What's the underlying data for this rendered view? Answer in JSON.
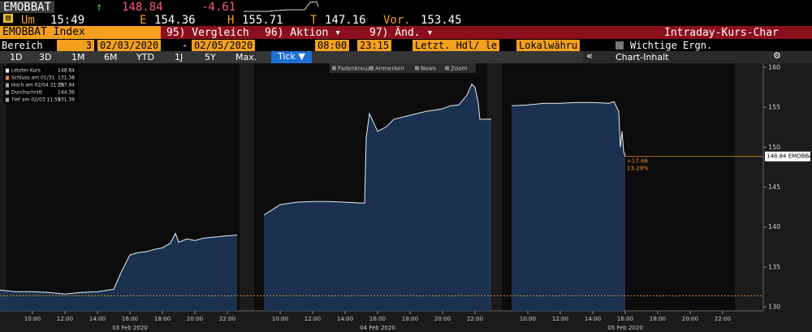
{
  "header": {
    "ticker": "EMOBBAT",
    "arrow": "↑",
    "last": 148.84,
    "change": -4.61,
    "time_label": "Um",
    "time": "15:49",
    "open_label": "E",
    "open": 154.36,
    "high_label": "H",
    "high": 155.71,
    "low_label": "T",
    "low": 147.16,
    "prev_label": "Vor.",
    "prev": 153.45
  },
  "tabs": {
    "security": "EMOBBAT Index",
    "buttons": [
      "95) Vergleich",
      "96) Aktion ▾",
      "97) Änd. ▾"
    ],
    "title": "Intraday-Kurs-Char"
  },
  "range": {
    "label": "Bereich",
    "days": "3",
    "start": "02/03/2020",
    "sep": "-",
    "end": "02/05/2020",
    "time_from": "08:00",
    "time_to": "23:15",
    "field": "Letzt. Hdl/ le",
    "currency": "Lokalwähru",
    "events": "Wichtige Ergn."
  },
  "periods": {
    "items": [
      "1D",
      "3D",
      "1M",
      "6M",
      "YTD",
      "1J",
      "5Y",
      "Max."
    ],
    "selected": "Tick ▼",
    "collapse": "«",
    "content": "Chart-Inhalt"
  },
  "chart_data": {
    "type": "line",
    "color": "#e6edf5",
    "fill": "#1d3a5c",
    "toolbar": [
      "Fadenkreuz",
      "Anmerken",
      "News",
      "Zoom"
    ],
    "legend": [
      {
        "label": "Letzter Kurs",
        "value": 148.84
      },
      {
        "label": "Schluss am 01/31",
        "value": 131.38
      },
      {
        "label": "Hoch am 02/04 21:26",
        "value": 157.94
      },
      {
        "label": "Durchschnitt",
        "value": 144.36
      },
      {
        "label": "Tief am 02/03 11:59",
        "value": 131.39
      }
    ],
    "last_label": "148.84 EMOBBAT",
    "annotations": [
      "+17.46",
      "13.29%"
    ],
    "xlim": [
      8,
      23.25
    ],
    "xticks": [
      {
        "value": 10,
        "label": "10:00"
      },
      {
        "value": 12,
        "label": "12:00"
      },
      {
        "value": 14,
        "label": "14:00"
      },
      {
        "value": 16,
        "label": "16:00"
      },
      {
        "value": 18,
        "label": "18:00"
      },
      {
        "value": 20,
        "label": "20:00"
      },
      {
        "value": 22,
        "label": "22:00"
      }
    ],
    "ylim": [
      130,
      160
    ],
    "yticks": [
      130,
      135,
      140,
      145,
      150,
      155,
      160
    ],
    "panels": [
      {
        "label": "03 Feb 2020",
        "x": [
          8,
          9,
          10,
          11,
          12,
          13,
          14,
          15,
          15.5,
          16,
          16.5,
          17,
          17.5,
          18,
          18.5,
          18.8,
          19,
          19.5,
          20,
          20.5,
          21,
          21.5,
          22,
          22.6
        ],
        "values": [
          132.1,
          131.9,
          131.9,
          131.8,
          131.6,
          131.8,
          131.9,
          132.2,
          134.5,
          136.5,
          136.8,
          136.9,
          137.2,
          137.4,
          138,
          139.2,
          138.1,
          138.5,
          138.3,
          138.6,
          138.7,
          138.8,
          138.9,
          139
        ]
      },
      {
        "label": "04 Feb 2020",
        "x": [
          9,
          10,
          11,
          12,
          13,
          14,
          15,
          15.2,
          15.3,
          15.5,
          16,
          16.5,
          17,
          18,
          19,
          20,
          20.5,
          21,
          21.5,
          21.8,
          22,
          22.2,
          22.3,
          23
        ],
        "values": [
          141.5,
          142.8,
          143.1,
          143.2,
          143.2,
          143.1,
          143,
          143,
          151.2,
          154.2,
          152,
          152.5,
          153.5,
          154,
          154.5,
          154.8,
          155.2,
          155.3,
          156.5,
          157.9,
          157.5,
          155.5,
          153.5,
          153.5
        ]
      },
      {
        "label": "05 Feb 2020",
        "x": [
          9,
          10,
          11,
          12,
          13,
          14,
          15,
          15.3,
          15.6,
          15.7,
          15.8,
          15.9,
          16
        ],
        "values": [
          155.2,
          155.3,
          155.5,
          155.5,
          155.6,
          155.6,
          155.5,
          155.7,
          154.5,
          150,
          152,
          149.5,
          148.84
        ]
      }
    ]
  }
}
